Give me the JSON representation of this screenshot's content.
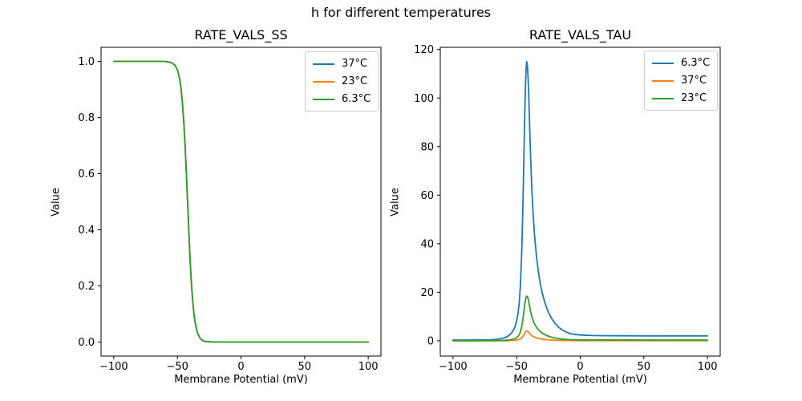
{
  "figure_title": "h for different temperatures",
  "colors": {
    "blue": "#1f77b4",
    "orange": "#ff7f0e",
    "green": "#2ca02c",
    "spine": "#000000",
    "legend_border": "#cccccc"
  },
  "chart_data": [
    {
      "type": "line",
      "title": "RATE_VALS_SS",
      "xlabel": "Membrane Potential (mV)",
      "ylabel": "Value",
      "xlim": [
        -110,
        110
      ],
      "ylim": [
        -0.05,
        1.05
      ],
      "grid": false,
      "legend_position": "upper right",
      "xticks": [
        -100,
        -50,
        0,
        50,
        100
      ],
      "xtick_labels": [
        "−100",
        "−50",
        "0",
        "50",
        "100"
      ],
      "yticks": [
        0.0,
        0.2,
        0.4,
        0.6,
        0.8,
        1.0
      ],
      "ytick_labels": [
        "0.0",
        "0.2",
        "0.4",
        "0.6",
        "0.8",
        "1.0"
      ],
      "overlap_note": "all three temperature curves coincide; green (drawn last) is visible",
      "x": [
        -100,
        -80,
        -70,
        -60,
        -55,
        -52,
        -50,
        -49,
        -48,
        -47,
        -46,
        -45,
        -44,
        -43,
        -42,
        -41,
        -40,
        -39,
        -38,
        -37,
        -36,
        -35,
        -34,
        -32,
        -30,
        -28,
        -25,
        -20,
        -10,
        0,
        20,
        50,
        100
      ],
      "series": [
        {
          "name": "37°C",
          "color": "#1f77b4",
          "values": [
            1.0,
            1.0,
            1.0,
            1.0,
            0.996,
            0.987,
            0.97,
            0.953,
            0.931,
            0.899,
            0.85,
            0.787,
            0.705,
            0.607,
            0.5,
            0.393,
            0.295,
            0.213,
            0.149,
            0.101,
            0.069,
            0.047,
            0.03,
            0.013,
            0.005,
            0.002,
            0.001,
            0,
            0,
            0,
            0,
            0,
            0
          ]
        },
        {
          "name": "23°C",
          "color": "#ff7f0e",
          "values": [
            1.0,
            1.0,
            1.0,
            1.0,
            0.996,
            0.987,
            0.97,
            0.953,
            0.931,
            0.899,
            0.85,
            0.787,
            0.705,
            0.607,
            0.5,
            0.393,
            0.295,
            0.213,
            0.149,
            0.101,
            0.069,
            0.047,
            0.03,
            0.013,
            0.005,
            0.002,
            0.001,
            0,
            0,
            0,
            0,
            0,
            0
          ]
        },
        {
          "name": "6.3°C",
          "color": "#2ca02c",
          "values": [
            1.0,
            1.0,
            1.0,
            1.0,
            0.996,
            0.987,
            0.97,
            0.953,
            0.931,
            0.899,
            0.85,
            0.787,
            0.705,
            0.607,
            0.5,
            0.393,
            0.295,
            0.213,
            0.149,
            0.101,
            0.069,
            0.047,
            0.03,
            0.013,
            0.005,
            0.002,
            0.001,
            0,
            0,
            0,
            0,
            0,
            0
          ]
        }
      ]
    },
    {
      "type": "line",
      "title": "RATE_VALS_TAU",
      "xlabel": "Membrane Potential (mV)",
      "ylabel": "Value",
      "xlim": [
        -110,
        110
      ],
      "ylim": [
        -6.3,
        120.9
      ],
      "grid": false,
      "legend_position": "upper right",
      "xticks": [
        -100,
        -50,
        0,
        50,
        100
      ],
      "xtick_labels": [
        "−100",
        "−50",
        "0",
        "50",
        "100"
      ],
      "yticks": [
        0,
        20,
        40,
        60,
        80,
        100,
        120
      ],
      "ytick_labels": [
        "0",
        "20",
        "40",
        "60",
        "80",
        "100",
        "120"
      ],
      "peak_summary": {
        "6.3°C": {
          "x": -42,
          "y": 115
        },
        "23°C": {
          "x": -42,
          "y": 18.4
        },
        "37°C": {
          "x": -42,
          "y": 4.0
        }
      },
      "x": [
        -100,
        -90,
        -80,
        -75,
        -70,
        -67,
        -64,
        -61,
        -58,
        -56,
        -54,
        -52,
        -51,
        -50,
        -49,
        -48,
        -47,
        -46,
        -45.5,
        -45,
        -44.5,
        -44,
        -43.5,
        -43,
        -42.5,
        -42,
        -41.5,
        -41,
        -40.5,
        -40,
        -39.5,
        -39,
        -38.5,
        -38,
        -37,
        -36,
        -35,
        -34,
        -33,
        -32,
        -31,
        -30,
        -28,
        -26,
        -24,
        -22,
        -20,
        -17,
        -14,
        -11,
        -8,
        -5,
        0,
        10,
        20,
        40,
        60,
        80,
        100
      ],
      "series": [
        {
          "name": "6.3°C",
          "color": "#1f77b4",
          "values": [
            0.3,
            0.3,
            0.33,
            0.38,
            0.45,
            0.55,
            0.75,
            1.05,
            1.6,
            2.2,
            3.2,
            4.9,
            6.2,
            8.2,
            11,
            15.5,
            23,
            36,
            46,
            57,
            70,
            83,
            96,
            106,
            113,
            115,
            113,
            108,
            101,
            93,
            84,
            76,
            69,
            62,
            52,
            44,
            38,
            33,
            29,
            25.5,
            22.5,
            20,
            16,
            13,
            10.6,
            8.8,
            7.3,
            5.6,
            4.4,
            3.6,
            3.0,
            2.7,
            2.4,
            2.15,
            2.1,
            2.05,
            2.0,
            2.0,
            2.0
          ]
        },
        {
          "name": "37°C",
          "color": "#ff7f0e",
          "values": [
            0.01,
            0.01,
            0.01,
            0.01,
            0.02,
            0.02,
            0.03,
            0.04,
            0.06,
            0.08,
            0.11,
            0.17,
            0.21,
            0.28,
            0.38,
            0.53,
            0.79,
            1.24,
            1.59,
            1.97,
            2.41,
            2.86,
            3.31,
            3.66,
            3.9,
            3.97,
            3.9,
            3.72,
            3.48,
            3.21,
            2.9,
            2.62,
            2.38,
            2.14,
            1.79,
            1.52,
            1.31,
            1.14,
            1.0,
            0.88,
            0.78,
            0.69,
            0.55,
            0.45,
            0.37,
            0.3,
            0.25,
            0.19,
            0.15,
            0.12,
            0.1,
            0.09,
            0.08,
            0.07,
            0.07,
            0.07,
            0.07,
            0.07,
            0.07
          ]
        },
        {
          "name": "23°C",
          "color": "#2ca02c",
          "values": [
            0.05,
            0.05,
            0.05,
            0.06,
            0.07,
            0.09,
            0.12,
            0.17,
            0.26,
            0.35,
            0.51,
            0.78,
            0.99,
            1.31,
            1.76,
            2.48,
            3.68,
            5.76,
            7.36,
            9.12,
            11.2,
            13.3,
            15.4,
            17.0,
            18.1,
            18.4,
            18.1,
            17.3,
            16.2,
            14.9,
            13.4,
            12.2,
            11.0,
            9.9,
            8.3,
            7.0,
            6.1,
            5.3,
            4.6,
            4.1,
            3.6,
            3.2,
            2.56,
            2.08,
            1.7,
            1.41,
            1.17,
            0.9,
            0.7,
            0.58,
            0.48,
            0.43,
            0.38,
            0.34,
            0.34,
            0.33,
            0.32,
            0.32,
            0.32
          ]
        }
      ]
    }
  ]
}
